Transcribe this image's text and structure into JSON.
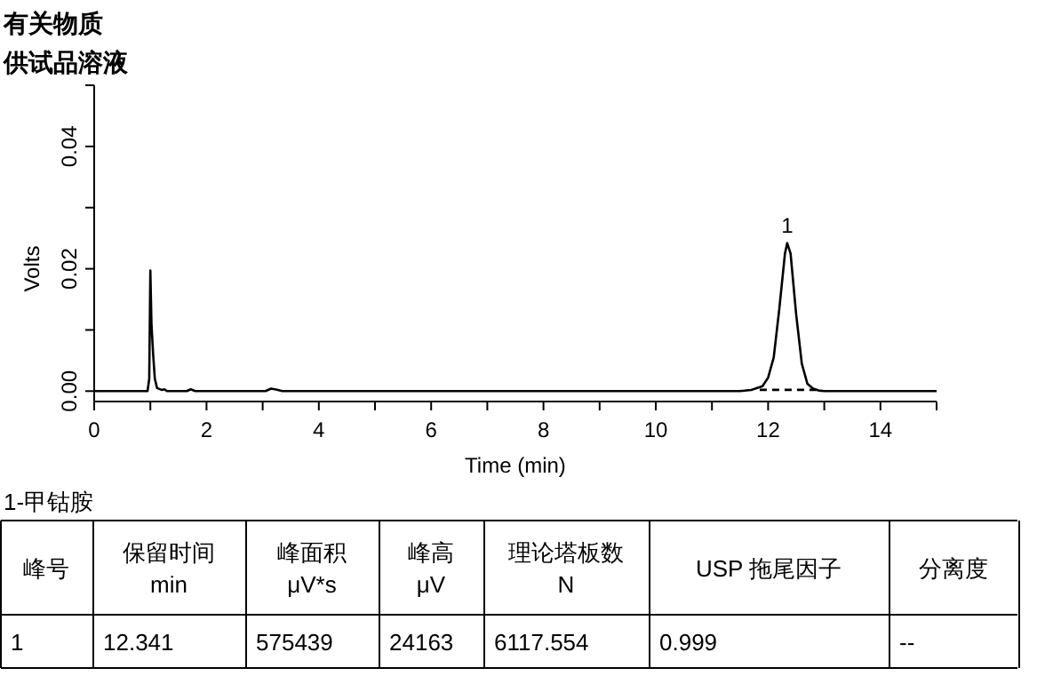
{
  "chart_data": {
    "type": "line",
    "title": "有关物质",
    "subtitle": "供试品溶液",
    "xlabel": "Time (min)",
    "ylabel": "Volts",
    "xlim": [
      0,
      15
    ],
    "ylim": [
      -0.0017,
      0.05
    ],
    "xticks": [
      0,
      {
        "value": 1,
        "label": null
      },
      2,
      {
        "value": 3,
        "label": null
      },
      4,
      {
        "value": 5,
        "label": null
      },
      6,
      {
        "value": 7,
        "label": null
      },
      8,
      {
        "value": 9,
        "label": null
      },
      10,
      {
        "value": 11,
        "label": null
      },
      12,
      {
        "value": 13,
        "label": null
      },
      14,
      {
        "value": 15,
        "label": null
      }
    ],
    "yticks": [
      {
        "value": 0,
        "label": "0.00"
      },
      {
        "value": 0.01,
        "label": null
      },
      {
        "value": 0.02,
        "label": "0.02"
      },
      {
        "value": 0.03,
        "label": null
      },
      {
        "value": 0.04,
        "label": "0.04"
      },
      {
        "value": 0.05,
        "label": null
      }
    ],
    "grid": false,
    "series": [
      {
        "color": "#000000",
        "line_style": "solid",
        "x": [
          0,
          0.95,
          0.98,
          1.0,
          1.02,
          1.05,
          1.08,
          1.12,
          1.2,
          1.25,
          1.3,
          1.65,
          1.72,
          1.8,
          3.05,
          3.15,
          3.22,
          3.35,
          11.5,
          11.7,
          11.9,
          12.0,
          12.1,
          12.2,
          12.3,
          12.34,
          12.4,
          12.5,
          12.6,
          12.7,
          12.8,
          12.9,
          13.0,
          15
        ],
        "values": [
          0,
          0,
          0.002,
          0.0197,
          0.011,
          0.006,
          0.002,
          0.0005,
          0.0002,
          0.0003,
          0,
          0,
          0.0003,
          0,
          0,
          0.0004,
          0.0003,
          0,
          0,
          0.0002,
          0.0008,
          0.0022,
          0.0055,
          0.0135,
          0.0225,
          0.0242,
          0.0225,
          0.0125,
          0.0045,
          0.0012,
          0.0004,
          0.0001,
          0,
          0
        ]
      },
      {
        "color": "#000000",
        "line_style": "dashed",
        "x": [
          11.85,
          12.9
        ],
        "values": [
          0.0002,
          0.0002
        ]
      }
    ],
    "annotations": [
      {
        "text": "1",
        "x": 12.34,
        "y": 0.0242
      },
      "1-甲钴胺",
      "峰号",
      "保留时间\nmin",
      "峰面积\nμV*s",
      "峰高\nμV",
      "理论塔板数\nN",
      "USP 拖尾因子",
      "分离度",
      "1",
      "12.341",
      "575439",
      "24163",
      "6117.554",
      "0.999",
      "--"
    ]
  }
}
